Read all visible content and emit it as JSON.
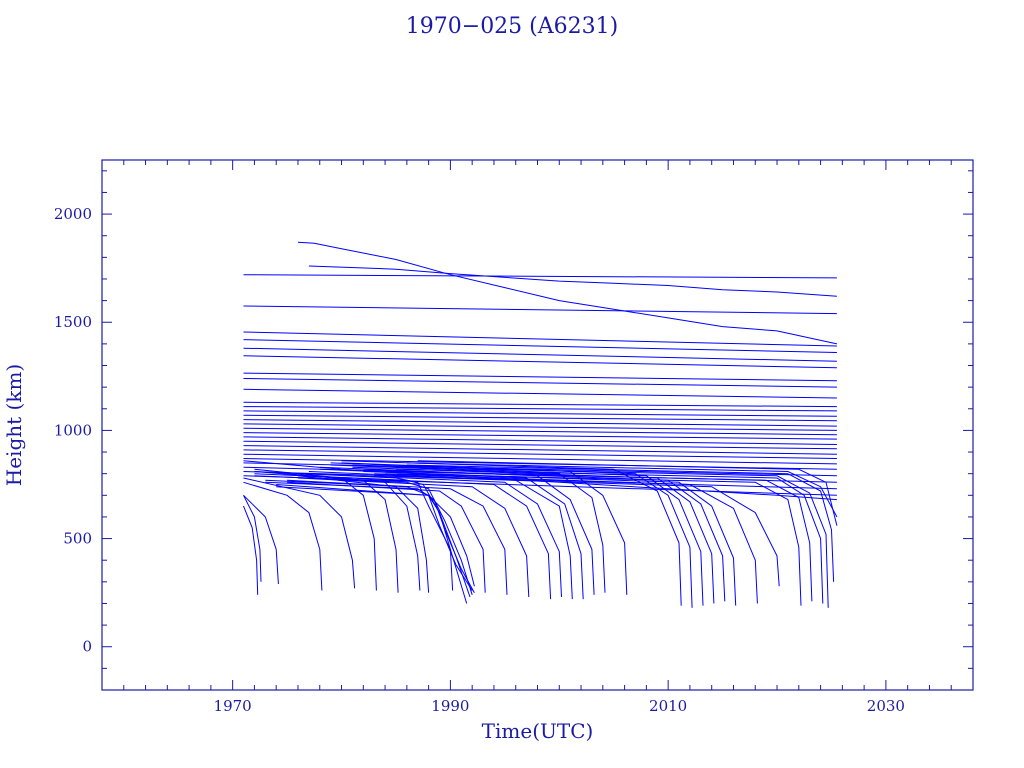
{
  "chart_data": {
    "type": "line",
    "title": "1970−025 (A6231)",
    "xlabel": "Time(UTC)",
    "ylabel": "Height (km)",
    "xlim": [
      1958,
      2038
    ],
    "ylim": [
      -200,
      2250
    ],
    "x_ticks": [
      1970,
      1990,
      2010,
      2030
    ],
    "y_ticks": [
      0,
      500,
      1000,
      1500,
      2000
    ],
    "grid": false,
    "legend": "none",
    "line_color": "#0000ff",
    "axis_color": "#1a1aa6",
    "series": [
      {
        "x": [
          1976.0,
          1977.5,
          1980,
          1985,
          1990,
          1995,
          2000,
          2005,
          2010,
          2015,
          2020,
          2025.5
        ],
        "y": [
          1870,
          1865,
          1840,
          1790,
          1720,
          1660,
          1600,
          1560,
          1520,
          1480,
          1460,
          1400
        ]
      },
      {
        "x": [
          1977,
          1985,
          1990,
          2000,
          2005,
          2010,
          2015,
          2020,
          2025.5
        ],
        "y": [
          1760,
          1745,
          1725,
          1690,
          1680,
          1670,
          1650,
          1640,
          1620
        ]
      },
      {
        "x": [
          1971,
          2025.5
        ],
        "y": [
          1720,
          1705
        ]
      },
      {
        "x": [
          1971,
          2025.5
        ],
        "y": [
          1575,
          1540
        ]
      },
      {
        "x": [
          1971,
          2025.5
        ],
        "y": [
          1455,
          1390
        ]
      },
      {
        "x": [
          1971,
          2025.5
        ],
        "y": [
          1420,
          1360
        ]
      },
      {
        "x": [
          1971,
          2025.5
        ],
        "y": [
          1380,
          1320
        ]
      },
      {
        "x": [
          1971,
          2025.5
        ],
        "y": [
          1345,
          1290
        ]
      },
      {
        "x": [
          1971,
          2025.5
        ],
        "y": [
          1265,
          1230
        ]
      },
      {
        "x": [
          1971,
          2025.5
        ],
        "y": [
          1240,
          1200
        ]
      },
      {
        "x": [
          1971,
          2025.5
        ],
        "y": [
          1190,
          1150
        ]
      },
      {
        "x": [
          1971,
          2025.5
        ],
        "y": [
          1130,
          1110
        ]
      },
      {
        "x": [
          1971,
          2025.5
        ],
        "y": [
          1110,
          1090
        ]
      },
      {
        "x": [
          1971,
          2025.5
        ],
        "y": [
          1090,
          1065
        ]
      },
      {
        "x": [
          1971,
          2025.5
        ],
        "y": [
          1070,
          1045
        ]
      },
      {
        "x": [
          1971,
          2025.5
        ],
        "y": [
          1050,
          1020
        ]
      },
      {
        "x": [
          1971,
          2025.5
        ],
        "y": [
          1030,
          1000
        ]
      },
      {
        "x": [
          1971,
          2025.5
        ],
        "y": [
          1010,
          980
        ]
      },
      {
        "x": [
          1971,
          2025.5
        ],
        "y": [
          990,
          960
        ]
      },
      {
        "x": [
          1971,
          2025.5
        ],
        "y": [
          970,
          935
        ]
      },
      {
        "x": [
          1971,
          2025.5
        ],
        "y": [
          950,
          915
        ]
      },
      {
        "x": [
          1971,
          2025.5
        ],
        "y": [
          930,
          890
        ]
      },
      {
        "x": [
          1971,
          2025.5
        ],
        "y": [
          910,
          870
        ]
      },
      {
        "x": [
          1971,
          2025.5
        ],
        "y": [
          890,
          845
        ]
      },
      {
        "x": [
          1971,
          2025.5
        ],
        "y": [
          870,
          820
        ]
      },
      {
        "x": [
          1971,
          2025.5
        ],
        "y": [
          850,
          790
        ]
      },
      {
        "x": [
          1971,
          2025.5
        ],
        "y": [
          830,
          760
        ]
      },
      {
        "x": [
          1971,
          2025.5
        ],
        "y": [
          810,
          730
        ]
      },
      {
        "x": [
          1971,
          2025.5
        ],
        "y": [
          790,
          700
        ]
      },
      {
        "x": [
          1971,
          1980,
          1990,
          2000,
          2010,
          2020,
          2025.5
        ],
        "y": [
          860,
          820,
          790,
          760,
          730,
          700,
          680
        ]
      },
      {
        "x": [
          1971,
          1978,
          1980,
          1981,
          1981.2
        ],
        "y": [
          780,
          700,
          600,
          400,
          270
        ]
      },
      {
        "x": [
          1971,
          1975,
          1977,
          1978,
          1978.2
        ],
        "y": [
          760,
          700,
          620,
          450,
          260
        ]
      },
      {
        "x": [
          1971,
          1973,
          1974,
          1974.2
        ],
        "y": [
          700,
          600,
          450,
          290
        ]
      },
      {
        "x": [
          1971,
          1972,
          1972.5,
          1972.6
        ],
        "y": [
          700,
          600,
          450,
          300
        ]
      },
      {
        "x": [
          1971,
          1971.8,
          1972.2,
          1972.3
        ],
        "y": [
          650,
          550,
          400,
          240
        ]
      },
      {
        "x": [
          1972,
          1980,
          1982,
          1983,
          1983.2
        ],
        "y": [
          820,
          780,
          700,
          500,
          260
        ]
      },
      {
        "x": [
          1972,
          1982,
          1984,
          1985,
          1985.2
        ],
        "y": [
          810,
          770,
          680,
          450,
          250
        ]
      },
      {
        "x": [
          1975,
          1984,
          1986,
          1987,
          1987.2
        ],
        "y": [
          800,
          760,
          650,
          420,
          260
        ]
      },
      {
        "x": [
          1976,
          1985,
          1987,
          1987.8,
          1988
        ],
        "y": [
          790,
          740,
          640,
          400,
          250
        ]
      },
      {
        "x": [
          1972,
          1985,
          1987,
          1988,
          1990,
          1991.5
        ],
        "y": [
          810,
          780,
          760,
          650,
          450,
          200
        ]
      },
      {
        "x": [
          1972,
          1986,
          1987.5,
          1989,
          1990.5,
          1991.8
        ],
        "y": [
          800,
          770,
          750,
          620,
          420,
          230
        ]
      },
      {
        "x": [
          1972,
          1986,
          1988,
          1989.5,
          1991,
          1992
        ],
        "y": [
          790,
          760,
          730,
          580,
          400,
          240
        ]
      },
      {
        "x": [
          1973,
          1986,
          1988,
          1989,
          1990.5,
          1992
        ],
        "y": [
          770,
          740,
          700,
          560,
          380,
          260
        ]
      },
      {
        "x": [
          1973,
          1987,
          1988.5,
          1989.5,
          1991,
          1992.2
        ],
        "y": [
          760,
          730,
          680,
          540,
          360,
          250
        ]
      },
      {
        "x": [
          1974,
          1988,
          1990,
          1991.5,
          1992.2
        ],
        "y": [
          750,
          700,
          600,
          420,
          280
        ]
      },
      {
        "x": [
          1974,
          1988,
          1989,
          1990,
          1990.2
        ],
        "y": [
          740,
          700,
          620,
          450,
          260
        ]
      },
      {
        "x": [
          1975,
          1989,
          1991,
          1993,
          1993.2
        ],
        "y": [
          760,
          720,
          650,
          450,
          250
        ]
      },
      {
        "x": [
          1975,
          1990,
          1993,
          1995,
          1995.2
        ],
        "y": [
          770,
          730,
          650,
          450,
          240
        ]
      },
      {
        "x": [
          1976,
          1992,
          1995,
          1997,
          1997.2
        ],
        "y": [
          780,
          740,
          640,
          420,
          230
        ]
      },
      {
        "x": [
          1976,
          1994,
          1997,
          1999,
          1999.2
        ],
        "y": [
          790,
          750,
          650,
          430,
          220
        ]
      },
      {
        "x": [
          1977,
          1995,
          1998,
          2000,
          2000.2
        ],
        "y": [
          800,
          760,
          660,
          440,
          230
        ]
      },
      {
        "x": [
          1977,
          1996,
          2000,
          2001,
          2001.2
        ],
        "y": [
          810,
          770,
          650,
          420,
          220
        ]
      },
      {
        "x": [
          1978,
          1997,
          2000.5,
          2002,
          2002.2
        ],
        "y": [
          820,
          780,
          660,
          430,
          220
        ]
      },
      {
        "x": [
          1978,
          1998,
          2001,
          2003,
          2003.2
        ],
        "y": [
          830,
          790,
          680,
          450,
          240
        ]
      },
      {
        "x": [
          1979,
          2000,
          2003,
          2004,
          2004.2
        ],
        "y": [
          840,
          800,
          690,
          470,
          250
        ]
      },
      {
        "x": [
          1979,
          2001,
          2004,
          2006,
          2006.2
        ],
        "y": [
          850,
          810,
          700,
          480,
          240
        ]
      },
      {
        "x": [
          1980,
          2005,
          2009,
          2011,
          2011.2
        ],
        "y": [
          860,
          820,
          720,
          480,
          190
        ]
      },
      {
        "x": [
          1980,
          2007,
          2010,
          2012,
          2012.2
        ],
        "y": [
          850,
          800,
          700,
          460,
          180
        ]
      },
      {
        "x": [
          1981,
          2008,
          2011,
          2013,
          2013.2
        ],
        "y": [
          840,
          790,
          680,
          440,
          190
        ]
      },
      {
        "x": [
          1981,
          2009,
          2012,
          2014,
          2014.2
        ],
        "y": [
          830,
          780,
          670,
          430,
          200
        ]
      },
      {
        "x": [
          1982,
          2010,
          2013,
          2015,
          2015.2
        ],
        "y": [
          820,
          770,
          660,
          420,
          210
        ]
      },
      {
        "x": [
          1982,
          2011,
          2014,
          2016,
          2016.2
        ],
        "y": [
          810,
          760,
          650,
          410,
          190
        ]
      },
      {
        "x": [
          1983,
          2012,
          2016,
          2018,
          2018.2
        ],
        "y": [
          800,
          750,
          640,
          400,
          200
        ]
      },
      {
        "x": [
          1983,
          2014,
          2018,
          2020,
          2020.2
        ],
        "y": [
          790,
          740,
          620,
          420,
          280
        ]
      },
      {
        "x": [
          1984,
          2018,
          2021,
          2022,
          2022.2
        ],
        "y": [
          800,
          760,
          680,
          460,
          190
        ]
      },
      {
        "x": [
          1984,
          2019,
          2022,
          2023,
          2023.2
        ],
        "y": [
          810,
          770,
          690,
          480,
          210
        ]
      },
      {
        "x": [
          1985,
          2020,
          2022.5,
          2024,
          2024.2
        ],
        "y": [
          820,
          780,
          700,
          500,
          200
        ]
      },
      {
        "x": [
          1985,
          2020,
          2023,
          2024.5,
          2024.7
        ],
        "y": [
          830,
          790,
          710,
          520,
          180
        ]
      },
      {
        "x": [
          1986,
          2021,
          2024,
          2025,
          2025.2
        ],
        "y": [
          840,
          800,
          720,
          540,
          300
        ]
      },
      {
        "x": [
          1986,
          2021,
          2024,
          2025.5
        ],
        "y": [
          850,
          810,
          740,
          600
        ]
      },
      {
        "x": [
          1987,
          2022,
          2024.5,
          2025.5
        ],
        "y": [
          860,
          820,
          760,
          560
        ]
      }
    ]
  }
}
